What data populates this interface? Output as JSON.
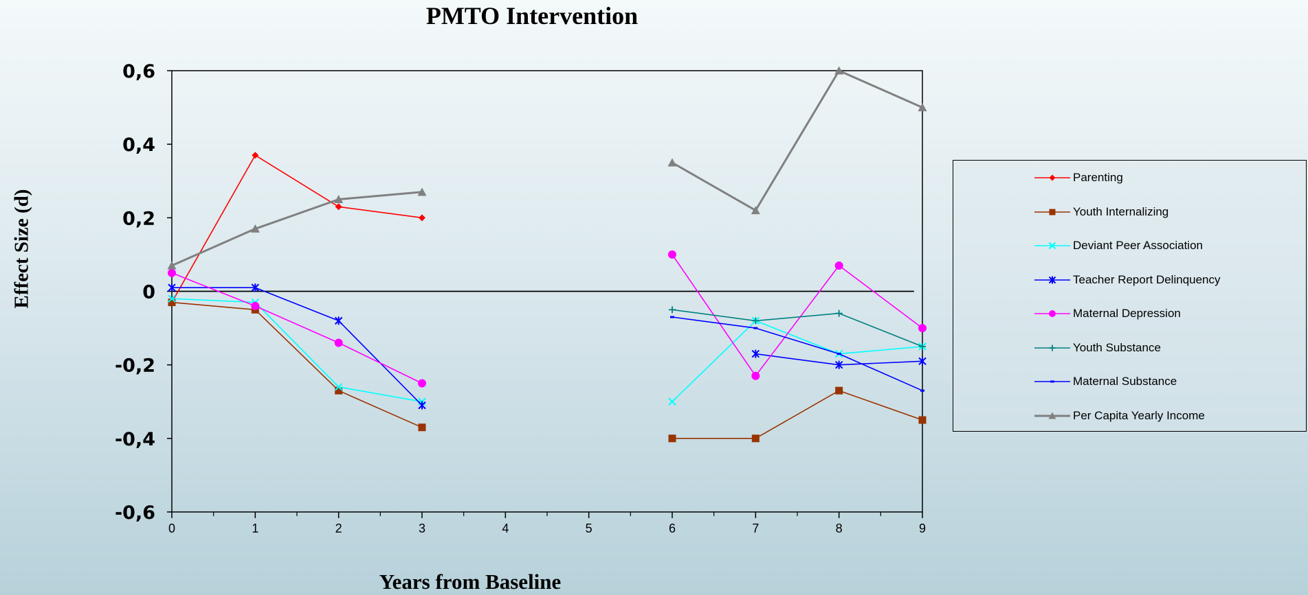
{
  "chart_data": {
    "type": "line",
    "title": "PMTO Intervention",
    "xlabel": "Years from Baseline",
    "ylabel": "Effect Size (d)",
    "xlim": [
      0,
      9
    ],
    "ylim": [
      -0.6,
      0.6
    ],
    "x_ticks": [
      "0",
      "1",
      "2",
      "3",
      "4",
      "5",
      "6",
      "7",
      "8",
      "9"
    ],
    "y_ticks": [
      "0,6",
      "0,4",
      "0,2",
      "0",
      "-0,2",
      "-0,4",
      "-0,6"
    ],
    "y_tick_values": [
      0.6,
      0.4,
      0.2,
      0,
      -0.2,
      -0.4,
      -0.6
    ],
    "reference_line": {
      "y": 0,
      "x_from": 0,
      "x_to": 8.9,
      "color": "#000000"
    },
    "grid": false,
    "legend_position": "right",
    "series": [
      {
        "name": "Parenting",
        "color": "#ff0000",
        "marker": "diamond",
        "points": [
          [
            0,
            -0.03
          ],
          [
            1,
            0.37
          ],
          [
            2,
            0.23
          ],
          [
            3,
            0.2
          ]
        ]
      },
      {
        "name": "Youth Internalizing",
        "color": "#993300",
        "marker": "square",
        "points": [
          [
            0,
            -0.03
          ],
          [
            1,
            -0.05
          ],
          [
            2,
            -0.27
          ],
          [
            3,
            -0.37
          ],
          null,
          [
            6,
            -0.4
          ],
          [
            7,
            -0.4
          ],
          [
            8,
            -0.27
          ],
          [
            9,
            -0.35
          ]
        ]
      },
      {
        "name": "Deviant Peer Association",
        "color": "#00ffff",
        "marker": "x",
        "points": [
          [
            0,
            -0.02
          ],
          [
            1,
            -0.03
          ],
          [
            2,
            -0.26
          ],
          [
            3,
            -0.3
          ],
          null,
          [
            6,
            -0.3
          ],
          [
            7,
            -0.08
          ],
          [
            8,
            -0.17
          ],
          [
            9,
            -0.15
          ]
        ]
      },
      {
        "name": "Teacher Report Delinquency",
        "color": "#0000ff",
        "marker": "star",
        "points": [
          [
            0,
            0.01
          ],
          [
            1,
            0.01
          ],
          [
            2,
            -0.08
          ],
          [
            3,
            -0.31
          ],
          null,
          [
            7,
            -0.17
          ],
          [
            8,
            -0.2
          ],
          [
            9,
            -0.19
          ]
        ]
      },
      {
        "name": "Maternal Depression",
        "color": "#ff00ff",
        "marker": "circle",
        "points": [
          [
            0,
            0.05
          ],
          [
            1,
            -0.04
          ],
          [
            2,
            -0.14
          ],
          [
            3,
            -0.25
          ],
          null,
          [
            6,
            0.1
          ],
          [
            7,
            -0.23
          ],
          [
            8,
            0.07
          ],
          [
            9,
            -0.1
          ]
        ]
      },
      {
        "name": "Youth Substance",
        "color": "#008080",
        "marker": "plus",
        "points": [
          [
            6,
            -0.05
          ],
          [
            7,
            -0.08
          ],
          [
            8,
            -0.06
          ],
          [
            9,
            -0.15
          ]
        ]
      },
      {
        "name": "Maternal Substance",
        "color": "#0000ff",
        "marker": "dash",
        "points": [
          [
            6,
            -0.07
          ],
          [
            7,
            -0.1
          ],
          [
            8,
            -0.17
          ],
          [
            9,
            -0.27
          ]
        ]
      },
      {
        "name": "Per Capita Yearly Income",
        "color": "#808080",
        "marker": "triangle",
        "points": [
          [
            0,
            0.07
          ],
          [
            1,
            0.17
          ],
          [
            2,
            0.25
          ],
          [
            3,
            0.27
          ],
          null,
          [
            6,
            0.35
          ],
          [
            7,
            0.22
          ],
          [
            8,
            0.6
          ],
          [
            9,
            0.5
          ]
        ]
      }
    ]
  }
}
